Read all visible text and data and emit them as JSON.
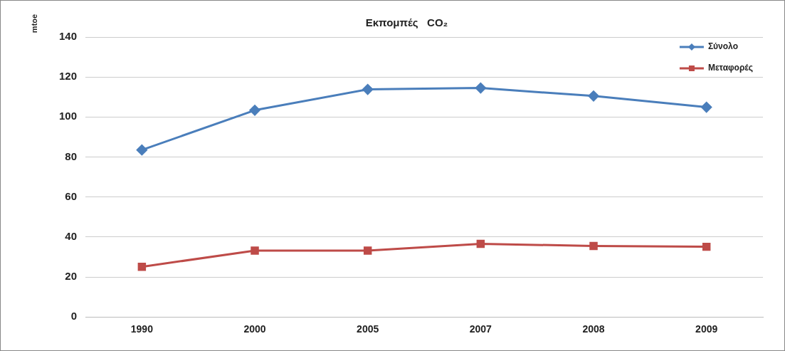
{
  "chart_data": {
    "type": "line",
    "title": "Εκπομπές   CO₂",
    "ylabel": "mtoe",
    "categories": [
      "1990",
      "2000",
      "2005",
      "2007",
      "2008",
      "2009"
    ],
    "series": [
      {
        "name": "Σύνολο",
        "color": "#4a7ebb",
        "marker": "diamond",
        "values": [
          83.5,
          103.4,
          113.8,
          114.5,
          110.5,
          104.9
        ]
      },
      {
        "name": "Μεταφορές",
        "color": "#be4b48",
        "marker": "square",
        "values": [
          25.1,
          33.2,
          33.2,
          36.6,
          35.5,
          35.1
        ]
      }
    ],
    "ylim": [
      0,
      140
    ],
    "yticks": [
      0,
      20,
      40,
      60,
      80,
      100,
      120,
      140
    ],
    "grid": "y",
    "legend": "top right",
    "line_style": "solid"
  }
}
